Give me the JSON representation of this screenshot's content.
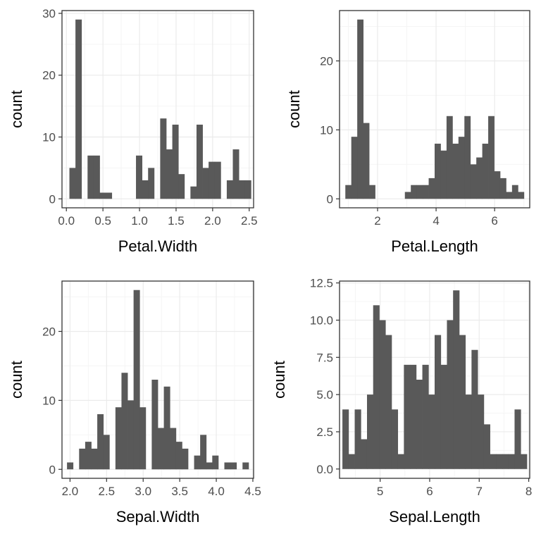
{
  "chart_data": [
    {
      "type": "bar",
      "xlabel": "Petal.Width",
      "ylabel": "count",
      "xlim": [
        -0.06,
        2.56
      ],
      "ylim": [
        -1.45,
        30.45
      ],
      "xticks": [
        {
          "v": 0.0,
          "label": "0.0"
        },
        {
          "v": 0.5,
          "label": "0.5"
        },
        {
          "v": 1.0,
          "label": "1.0"
        },
        {
          "v": 1.5,
          "label": "1.5"
        },
        {
          "v": 2.0,
          "label": "2.0"
        },
        {
          "v": 2.5,
          "label": "2.5"
        }
      ],
      "yticks": [
        {
          "v": 0,
          "label": "0"
        },
        {
          "v": 10,
          "label": "10"
        },
        {
          "v": 20,
          "label": "20"
        },
        {
          "v": 30,
          "label": "30"
        }
      ],
      "binwidth": 0.0828,
      "centers": [
        0.0,
        0.0828,
        0.1655,
        0.2483,
        0.331,
        0.4138,
        0.4966,
        0.5793,
        0.6621,
        0.7448,
        0.8276,
        0.9103,
        0.9931,
        1.0759,
        1.1586,
        1.2414,
        1.3241,
        1.4069,
        1.4897,
        1.5724,
        1.6552,
        1.7379,
        1.8207,
        1.9034,
        1.9862,
        2.069,
        2.1517,
        2.2345,
        2.3172,
        2.4,
        2.4828
      ],
      "values": [
        0,
        5,
        29,
        0,
        7,
        7,
        1,
        1,
        0,
        0,
        0,
        0,
        7,
        3,
        5,
        0,
        13,
        8,
        12,
        4,
        0,
        2,
        12,
        5,
        6,
        6,
        0,
        3,
        8,
        3,
        3
      ],
      "grid": true
    },
    {
      "type": "bar",
      "xlabel": "Petal.Length",
      "ylabel": "count",
      "xlim": [
        0.7,
        7.2
      ],
      "ylim": [
        -1.3,
        27.3
      ],
      "xticks": [
        {
          "v": 2,
          "label": "2"
        },
        {
          "v": 4,
          "label": "4"
        },
        {
          "v": 6,
          "label": "6"
        }
      ],
      "yticks": [
        {
          "v": 0,
          "label": "0"
        },
        {
          "v": 10,
          "label": "10"
        },
        {
          "v": 20,
          "label": "20"
        }
      ],
      "binwidth": 0.2034,
      "centers": [
        1.0,
        1.2034,
        1.4069,
        1.6103,
        1.8138,
        2.0172,
        2.2207,
        2.4241,
        2.6276,
        2.831,
        3.0345,
        3.2379,
        3.4414,
        3.6448,
        3.8483,
        4.0517,
        4.2552,
        4.4586,
        4.6621,
        4.8655,
        5.069,
        5.2724,
        5.4759,
        5.6793,
        5.8828,
        6.0862,
        6.2897,
        6.4931,
        6.6966,
        6.9
      ],
      "values": [
        2,
        9,
        26,
        11,
        2,
        0,
        0,
        0,
        0,
        0,
        1,
        2,
        2,
        2,
        3,
        8,
        7,
        12,
        8,
        9,
        12,
        5,
        6,
        8,
        12,
        4,
        3,
        1,
        2,
        1
      ],
      "grid": true
    },
    {
      "type": "bar",
      "xlabel": "Sepal.Width",
      "ylabel": "count",
      "xlim": [
        1.89,
        4.51
      ],
      "ylim": [
        -1.3,
        27.3
      ],
      "xticks": [
        {
          "v": 2.0,
          "label": "2.0"
        },
        {
          "v": 2.5,
          "label": "2.5"
        },
        {
          "v": 3.0,
          "label": "3.0"
        },
        {
          "v": 3.5,
          "label": "3.5"
        },
        {
          "v": 4.0,
          "label": "4.0"
        },
        {
          "v": 4.5,
          "label": "4.5"
        }
      ],
      "yticks": [
        {
          "v": 0,
          "label": "0"
        },
        {
          "v": 10,
          "label": "10"
        },
        {
          "v": 20,
          "label": "20"
        }
      ],
      "binwidth": 0.0828,
      "centers": [
        2.0,
        2.0828,
        2.1655,
        2.2483,
        2.331,
        2.4138,
        2.4966,
        2.5793,
        2.6621,
        2.7448,
        2.8276,
        2.9103,
        2.9931,
        3.0759,
        3.1586,
        3.2414,
        3.3241,
        3.4069,
        3.4897,
        3.5724,
        3.6552,
        3.7379,
        3.8207,
        3.9034,
        3.9862,
        4.069,
        4.1517,
        4.2345,
        4.3172,
        4.4
      ],
      "values": [
        1,
        0,
        3,
        4,
        3,
        8,
        5,
        0,
        9,
        14,
        10,
        26,
        9,
        0,
        13,
        6,
        12,
        6,
        4,
        3,
        0,
        2,
        5,
        1,
        2,
        0,
        1,
        1,
        0,
        1
      ],
      "grid": true
    },
    {
      "type": "bar",
      "xlabel": "Sepal.Length",
      "ylabel": "count",
      "xlim": [
        4.18,
        8.02
      ],
      "ylim": [
        -0.625,
        12.625
      ],
      "xticks": [
        {
          "v": 5,
          "label": "5"
        },
        {
          "v": 6,
          "label": "6"
        },
        {
          "v": 7,
          "label": "7"
        },
        {
          "v": 8,
          "label": "8"
        }
      ],
      "yticks": [
        {
          "v": 0,
          "label": "0.0"
        },
        {
          "v": 2.5,
          "label": "2.5"
        },
        {
          "v": 5,
          "label": "5.0"
        },
        {
          "v": 7.5,
          "label": "7.5"
        },
        {
          "v": 10,
          "label": "10.0"
        },
        {
          "v": 12.5,
          "label": "12.5"
        }
      ],
      "binwidth": 0.1241,
      "centers": [
        4.3,
        4.4241,
        4.5483,
        4.6724,
        4.7966,
        4.9207,
        5.0448,
        5.169,
        5.2931,
        5.4172,
        5.5414,
        5.6655,
        5.7897,
        5.9138,
        6.0379,
        6.1621,
        6.2862,
        6.4103,
        6.5345,
        6.6586,
        6.7828,
        6.9069,
        7.031,
        7.1552,
        7.2793,
        7.4034,
        7.5276,
        7.6517,
        7.7759,
        7.9
      ],
      "values": [
        4,
        1,
        4,
        2,
        5,
        11,
        10,
        9,
        4,
        1,
        7,
        7,
        6,
        7,
        5,
        9,
        7,
        10,
        12,
        9,
        5,
        8,
        5,
        3,
        1,
        1,
        1,
        1,
        4,
        1
      ],
      "grid": true
    }
  ]
}
